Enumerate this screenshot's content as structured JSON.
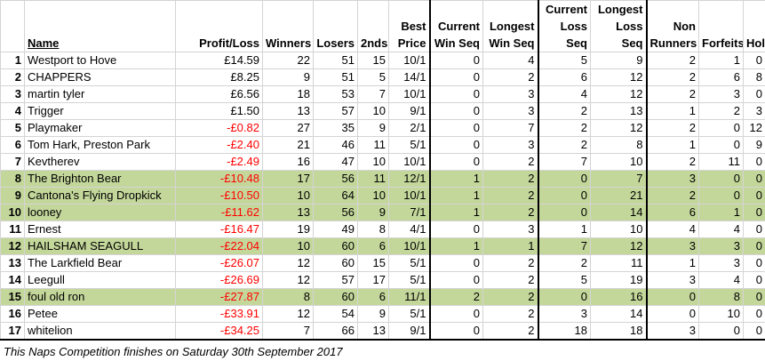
{
  "headers": {
    "rank": "",
    "name": "Name",
    "profit": "Profit/Loss",
    "winners": "Winners",
    "losers": "Losers",
    "seconds": "2nds",
    "best_price": "Best Price",
    "current_win_seq": "Current Win Seq",
    "longest_win_seq": "Longest Win Seq",
    "current_loss_seq": "Current Loss Seq",
    "longest_loss_seq": "Longest Loss Seq",
    "non_runners": "Non Runners",
    "forfeits": "Forfeits",
    "holiday": "Holiday"
  },
  "rows": [
    {
      "rank": "1",
      "name": "Westport to Hove",
      "profit": "£14.59",
      "winners": "22",
      "losers": "51",
      "seconds": "15",
      "best_price": "10/1",
      "cws": "0",
      "lws": "4",
      "cls": "5",
      "lls": "9",
      "nr": "2",
      "forfeits": "1",
      "holiday": "0",
      "negative": false,
      "highlight": false
    },
    {
      "rank": "2",
      "name": "CHAPPERS",
      "profit": "£8.25",
      "winners": "9",
      "losers": "51",
      "seconds": "5",
      "best_price": "14/1",
      "cws": "0",
      "lws": "2",
      "cls": "6",
      "lls": "12",
      "nr": "2",
      "forfeits": "6",
      "holiday": "8",
      "negative": false,
      "highlight": false
    },
    {
      "rank": "3",
      "name": "martin tyler",
      "profit": "£6.56",
      "winners": "18",
      "losers": "53",
      "seconds": "7",
      "best_price": "10/1",
      "cws": "0",
      "lws": "3",
      "cls": "4",
      "lls": "12",
      "nr": "2",
      "forfeits": "3",
      "holiday": "0",
      "negative": false,
      "highlight": false
    },
    {
      "rank": "4",
      "name": "Trigger",
      "profit": "£1.50",
      "winners": "13",
      "losers": "57",
      "seconds": "10",
      "best_price": "9/1",
      "cws": "0",
      "lws": "3",
      "cls": "2",
      "lls": "13",
      "nr": "1",
      "forfeits": "2",
      "holiday": "3",
      "negative": false,
      "highlight": false
    },
    {
      "rank": "5",
      "name": "Playmaker",
      "profit": "-£0.82",
      "winners": "27",
      "losers": "35",
      "seconds": "9",
      "best_price": "2/1",
      "cws": "0",
      "lws": "7",
      "cls": "2",
      "lls": "12",
      "nr": "2",
      "forfeits": "0",
      "holiday": "12",
      "negative": true,
      "highlight": false
    },
    {
      "rank": "6",
      "name": "Tom Hark, Preston Park",
      "profit": "-£2.40",
      "winners": "21",
      "losers": "46",
      "seconds": "11",
      "best_price": "5/1",
      "cws": "0",
      "lws": "3",
      "cls": "2",
      "lls": "8",
      "nr": "1",
      "forfeits": "0",
      "holiday": "9",
      "negative": true,
      "highlight": false
    },
    {
      "rank": "7",
      "name": "Kevtherev",
      "profit": "-£2.49",
      "winners": "16",
      "losers": "47",
      "seconds": "10",
      "best_price": "10/1",
      "cws": "0",
      "lws": "2",
      "cls": "7",
      "lls": "10",
      "nr": "2",
      "forfeits": "11",
      "holiday": "0",
      "negative": true,
      "highlight": false
    },
    {
      "rank": "8",
      "name": "The Brighton Bear",
      "profit": "-£10.48",
      "winners": "17",
      "losers": "56",
      "seconds": "11",
      "best_price": "12/1",
      "cws": "1",
      "lws": "2",
      "cls": "0",
      "lls": "7",
      "nr": "3",
      "forfeits": "0",
      "holiday": "0",
      "negative": true,
      "highlight": true
    },
    {
      "rank": "9",
      "name": "Cantona's Flying Dropkick",
      "profit": "-£10.50",
      "winners": "10",
      "losers": "64",
      "seconds": "10",
      "best_price": "10/1",
      "cws": "1",
      "lws": "2",
      "cls": "0",
      "lls": "21",
      "nr": "2",
      "forfeits": "0",
      "holiday": "0",
      "negative": true,
      "highlight": true
    },
    {
      "rank": "10",
      "name": "looney",
      "profit": "-£11.62",
      "winners": "13",
      "losers": "56",
      "seconds": "9",
      "best_price": "7/1",
      "cws": "1",
      "lws": "2",
      "cls": "0",
      "lls": "14",
      "nr": "6",
      "forfeits": "1",
      "holiday": "0",
      "negative": true,
      "highlight": true
    },
    {
      "rank": "11",
      "name": "Ernest",
      "profit": "-£16.47",
      "winners": "19",
      "losers": "49",
      "seconds": "8",
      "best_price": "4/1",
      "cws": "0",
      "lws": "3",
      "cls": "1",
      "lls": "10",
      "nr": "4",
      "forfeits": "4",
      "holiday": "0",
      "negative": true,
      "highlight": false
    },
    {
      "rank": "12",
      "name": "HAILSHAM SEAGULL",
      "profit": "-£22.04",
      "winners": "10",
      "losers": "60",
      "seconds": "6",
      "best_price": "10/1",
      "cws": "1",
      "lws": "1",
      "cls": "7",
      "lls": "12",
      "nr": "3",
      "forfeits": "3",
      "holiday": "0",
      "negative": true,
      "highlight": true
    },
    {
      "rank": "13",
      "name": "The Larkfield Bear",
      "profit": "-£26.07",
      "winners": "12",
      "losers": "60",
      "seconds": "15",
      "best_price": "5/1",
      "cws": "0",
      "lws": "2",
      "cls": "2",
      "lls": "11",
      "nr": "1",
      "forfeits": "3",
      "holiday": "0",
      "negative": true,
      "highlight": false
    },
    {
      "rank": "14",
      "name": "Leegull",
      "profit": "-£26.69",
      "winners": "12",
      "losers": "57",
      "seconds": "17",
      "best_price": "5/1",
      "cws": "0",
      "lws": "2",
      "cls": "5",
      "lls": "19",
      "nr": "3",
      "forfeits": "4",
      "holiday": "0",
      "negative": true,
      "highlight": false
    },
    {
      "rank": "15",
      "name": "foul old ron",
      "profit": "-£27.87",
      "winners": "8",
      "losers": "60",
      "seconds": "6",
      "best_price": "11/1",
      "cws": "2",
      "lws": "2",
      "cls": "0",
      "lls": "16",
      "nr": "0",
      "forfeits": "8",
      "holiday": "0",
      "negative": true,
      "highlight": true
    },
    {
      "rank": "16",
      "name": "Petee",
      "profit": "-£33.91",
      "winners": "12",
      "losers": "54",
      "seconds": "9",
      "best_price": "5/1",
      "cws": "0",
      "lws": "2",
      "cls": "3",
      "lls": "14",
      "nr": "0",
      "forfeits": "10",
      "holiday": "0",
      "negative": true,
      "highlight": false
    },
    {
      "rank": "17",
      "name": "whitelion",
      "profit": "-£34.25",
      "winners": "7",
      "losers": "66",
      "seconds": "13",
      "best_price": "9/1",
      "cws": "0",
      "lws": "2",
      "cls": "18",
      "lls": "18",
      "nr": "3",
      "forfeits": "0",
      "holiday": "0",
      "negative": true,
      "highlight": false
    }
  ],
  "footer": "This Naps Competition finishes on Saturday 30th September 2017",
  "colors": {
    "highlight": "#c4d79b",
    "negative": "#ff0000"
  }
}
